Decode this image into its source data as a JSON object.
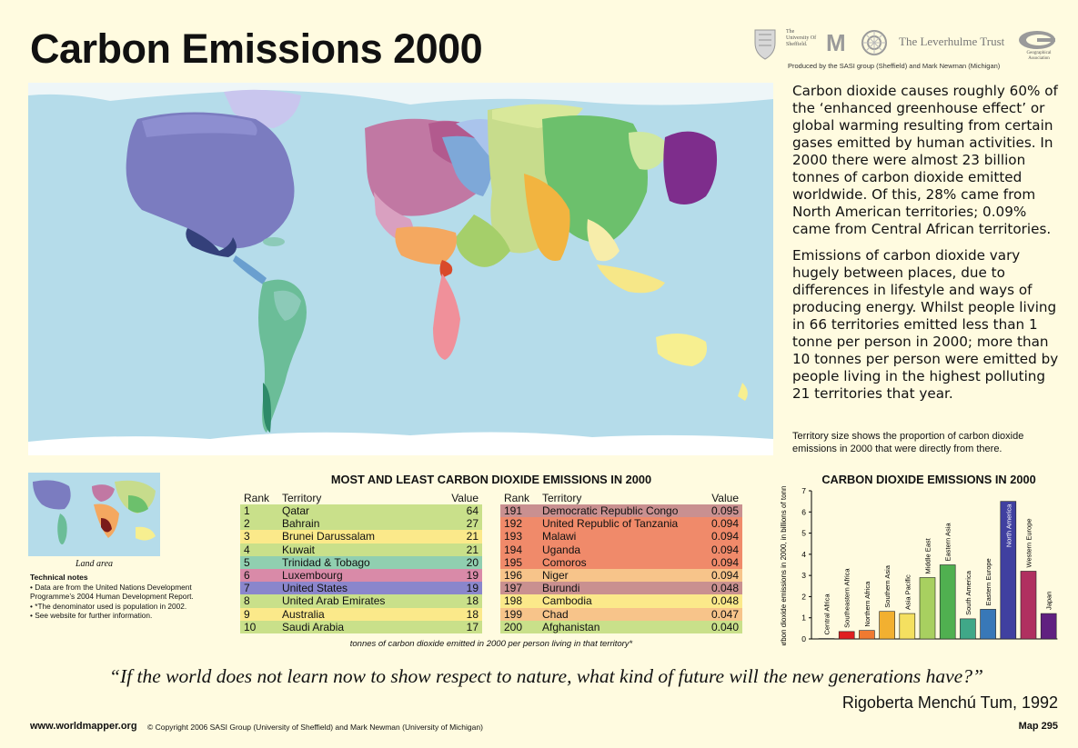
{
  "header": {
    "title": "Carbon Emissions 2000",
    "credit": "Produced by the SASI group (Sheffield) and Mark Newman (Michigan)",
    "logos": {
      "sheffield": "The University Of Sheffield.",
      "michigan": "M",
      "leverhulme": "The Leverhulme Trust",
      "geo": "Geographical Association"
    }
  },
  "description": {
    "para1": "Carbon dioxide causes roughly 60% of the ‘enhanced greenhouse effect’ or global warming resulting from certain gases emitted by human activities. In 2000 there were almost 23 billion tonnes of carbon dioxide emitted worldwide. Of this, 28% came from North American territories; 0.09% came from Central African territories.",
    "para2": "Emissions of carbon dioxide vary hugely between places, due to differences in lifestyle and ways of producing energy. Whilst people living in 66 territories emitted less than 1 tonne per person in 2000; more than 10 tonnes per person were emitted by people living in the highest polluting 21 territories that year.",
    "map_note": "Territory size shows the proportion of carbon dioxide emissions in 2000 that were directly from there."
  },
  "inset": {
    "caption": "Land area"
  },
  "technical_notes": {
    "heading": "Technical notes",
    "items": [
      "Data are from the United Nations Development Programme’s 2004 Human Development Report.",
      "*The denominator used is population in 2002.",
      "See website for further information."
    ]
  },
  "tables": {
    "title": "MOST AND LEAST CARBON DIOXIDE EMISSIONS IN 2000",
    "headers": {
      "rank": "Rank",
      "territory": "Territory",
      "value": "Value"
    },
    "most": [
      {
        "rank": "1",
        "territory": "Qatar",
        "value": "64",
        "color": "#c9e08a"
      },
      {
        "rank": "2",
        "territory": "Bahrain",
        "value": "27",
        "color": "#c9e08a"
      },
      {
        "rank": "3",
        "territory": "Brunei Darussalam",
        "value": "21",
        "color": "#fbe98a"
      },
      {
        "rank": "4",
        "territory": "Kuwait",
        "value": "21",
        "color": "#c9e08a"
      },
      {
        "rank": "5",
        "territory": "Trinidad & Tobago",
        "value": "20",
        "color": "#90cfb0"
      },
      {
        "rank": "6",
        "territory": "Luxembourg",
        "value": "19",
        "color": "#d98aa8"
      },
      {
        "rank": "7",
        "territory": "United States",
        "value": "19",
        "color": "#8a86cc"
      },
      {
        "rank": "8",
        "territory": "United Arab Emirates",
        "value": "18",
        "color": "#c9e08a"
      },
      {
        "rank": "9",
        "territory": "Australia",
        "value": "18",
        "color": "#fbe98a"
      },
      {
        "rank": "10",
        "territory": "Saudi Arabia",
        "value": "17",
        "color": "#c9e08a"
      }
    ],
    "least": [
      {
        "rank": "191",
        "territory": "Democratic Republic Congo",
        "value": "0.095",
        "color": "#c99090"
      },
      {
        "rank": "192",
        "territory": "United Republic of Tanzania",
        "value": "0.094",
        "color": "#f08a6a"
      },
      {
        "rank": "193",
        "territory": "Malawi",
        "value": "0.094",
        "color": "#f08a6a"
      },
      {
        "rank": "194",
        "territory": "Uganda",
        "value": "0.094",
        "color": "#f08a6a"
      },
      {
        "rank": "195",
        "territory": "Comoros",
        "value": "0.094",
        "color": "#f08a6a"
      },
      {
        "rank": "196",
        "territory": "Niger",
        "value": "0.094",
        "color": "#f7c48a"
      },
      {
        "rank": "197",
        "territory": "Burundi",
        "value": "0.048",
        "color": "#c99090"
      },
      {
        "rank": "198",
        "territory": "Cambodia",
        "value": "0.048",
        "color": "#fbe98a"
      },
      {
        "rank": "199",
        "territory": "Chad",
        "value": "0.047",
        "color": "#f7c48a"
      },
      {
        "rank": "200",
        "territory": "Afghanistan",
        "value": "0.040",
        "color": "#c9e08a"
      }
    ],
    "note": "tonnes of carbon dioxide emitted in 2000 per person living in that territory*"
  },
  "chart_data": {
    "type": "bar",
    "title": "CARBON DIOXIDE EMISSIONS IN 2000",
    "ylabel": "carbon dioxide emissions in 2000, in billions of tonnes",
    "xlabel": "",
    "ylim": [
      0,
      7
    ],
    "yticks": [
      "0",
      "1",
      "2",
      "3",
      "4",
      "5",
      "6",
      "7"
    ],
    "categories": [
      "Central Africa",
      "Southeastern Africa",
      "Northern Africa",
      "Southern Asia",
      "Asia Pacific",
      "Middle East",
      "Eastern Asia",
      "South America",
      "Eastern Europe",
      "North America",
      "Western Europe",
      "Japan"
    ],
    "values": [
      0.02,
      0.35,
      0.4,
      1.3,
      1.2,
      2.9,
      3.5,
      0.95,
      1.4,
      6.5,
      3.2,
      1.2
    ],
    "colors": [
      "#8a2020",
      "#e02020",
      "#f07a30",
      "#f2b030",
      "#f4e060",
      "#a8d060",
      "#50b050",
      "#40a888",
      "#3878b8",
      "#4040a0",
      "#b03060",
      "#602080"
    ],
    "grid": false
  },
  "quote": {
    "text": "“If the world does not learn now to show respect to nature, what kind of future will the new generations have?”",
    "author": "Rigoberta Menchú Tum, 1992"
  },
  "footer": {
    "url": "www.worldmapper.org",
    "copyright": "© Copyright 2006 SASI Group (University of Sheffield) and Mark Newman (University of Michigan)",
    "map_number": "Map 295"
  }
}
